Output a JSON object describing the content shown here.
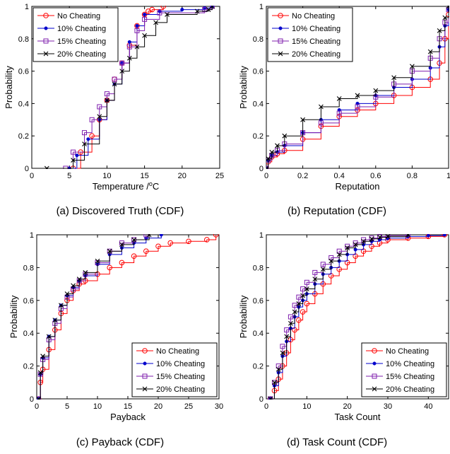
{
  "series_names": [
    "No Cheating",
    "10% Cheating",
    "15% Cheating",
    "20% Cheating"
  ],
  "colors": [
    "#ff0000",
    "#0000cc",
    "#7f1fae",
    "#000000"
  ],
  "markers": [
    "circle",
    "dot",
    "square",
    "x"
  ],
  "chart_data": [
    {
      "type": "line",
      "caption": "(a) Discovered Truth (CDF)",
      "xlabel": "Temperature /",
      "xlabel_unit": "C",
      "xlabel_unit_sup": "o",
      "ylabel": "Probability",
      "xlim": [
        0,
        25
      ],
      "ylim": [
        0,
        1
      ],
      "xticks": [
        0,
        5,
        10,
        15,
        20,
        25
      ],
      "yticks": [
        0,
        0.2,
        0.4,
        0.6,
        0.8,
        1
      ],
      "ytick_labels": [
        "0",
        "0.2",
        "0.4",
        "0.6",
        "0.8",
        "1"
      ],
      "legend": "top-left",
      "series": [
        {
          "name": "No Cheating",
          "x": [
            5.5,
            6.5,
            8,
            9,
            10,
            11,
            12,
            13,
            14,
            15,
            15.5,
            16,
            17.5
          ],
          "y": [
            0,
            0.1,
            0.2,
            0.3,
            0.42,
            0.55,
            0.65,
            0.76,
            0.88,
            0.95,
            0.97,
            0.98,
            1
          ]
        },
        {
          "name": "10% Cheating",
          "x": [
            5,
            6,
            7.5,
            9,
            10,
            11,
            12,
            13,
            14,
            15,
            17,
            20,
            23,
            24
          ],
          "y": [
            0,
            0.08,
            0.18,
            0.3,
            0.42,
            0.52,
            0.65,
            0.78,
            0.88,
            0.95,
            0.97,
            0.98,
            0.99,
            1
          ]
        },
        {
          "name": "15% Cheating",
          "x": [
            4.5,
            5.5,
            7,
            8,
            9,
            10,
            11,
            12,
            13,
            14,
            15,
            17,
            23,
            24
          ],
          "y": [
            0,
            0.1,
            0.22,
            0.3,
            0.38,
            0.46,
            0.55,
            0.65,
            0.75,
            0.85,
            0.92,
            0.96,
            0.98,
            1
          ]
        },
        {
          "name": "20% Cheating",
          "x": [
            2,
            5.5,
            7,
            9,
            10,
            11,
            12,
            13,
            14,
            15,
            16.5,
            18,
            22,
            23.5,
            24
          ],
          "y": [
            0,
            0.05,
            0.15,
            0.32,
            0.42,
            0.52,
            0.6,
            0.68,
            0.75,
            0.82,
            0.9,
            0.95,
            0.97,
            0.98,
            1
          ]
        }
      ]
    },
    {
      "type": "line",
      "caption": "(b) Reputation (CDF)",
      "xlabel": "Reputation",
      "ylabel": "Probability",
      "xlim": [
        0,
        1
      ],
      "ylim": [
        0,
        1
      ],
      "xticks": [
        0,
        0.2,
        0.4,
        0.6,
        0.8,
        1
      ],
      "xtick_labels": [
        "0",
        "0.2",
        "0.4",
        "0.6",
        "0.8",
        "1"
      ],
      "yticks": [
        0,
        0.2,
        0.4,
        0.6,
        0.8,
        1
      ],
      "ytick_labels": [
        "0",
        "0.2",
        "0.4",
        "0.6",
        "0.8",
        "1"
      ],
      "legend": "top-left",
      "series": [
        {
          "name": "No Cheating",
          "x": [
            0,
            0.01,
            0.03,
            0.06,
            0.1,
            0.2,
            0.3,
            0.4,
            0.5,
            0.6,
            0.7,
            0.8,
            0.9,
            0.95,
            0.98,
            1
          ],
          "y": [
            0,
            0.04,
            0.07,
            0.09,
            0.11,
            0.18,
            0.26,
            0.32,
            0.36,
            0.4,
            0.45,
            0.5,
            0.55,
            0.65,
            0.8,
            0.95
          ]
        },
        {
          "name": "10% Cheating",
          "x": [
            0,
            0.01,
            0.03,
            0.06,
            0.1,
            0.2,
            0.3,
            0.4,
            0.5,
            0.6,
            0.7,
            0.8,
            0.9,
            0.95,
            0.98,
            1
          ],
          "y": [
            0,
            0.05,
            0.08,
            0.1,
            0.14,
            0.22,
            0.3,
            0.36,
            0.4,
            0.45,
            0.5,
            0.55,
            0.62,
            0.75,
            0.88,
            0.98
          ]
        },
        {
          "name": "15% Cheating",
          "x": [
            0,
            0.01,
            0.03,
            0.06,
            0.1,
            0.2,
            0.3,
            0.4,
            0.5,
            0.6,
            0.7,
            0.8,
            0.9,
            0.95,
            0.98,
            1
          ],
          "y": [
            0,
            0.05,
            0.08,
            0.11,
            0.15,
            0.22,
            0.28,
            0.34,
            0.38,
            0.44,
            0.52,
            0.6,
            0.68,
            0.8,
            0.9,
            0.98
          ]
        },
        {
          "name": "20% Cheating",
          "x": [
            0,
            0.01,
            0.03,
            0.06,
            0.1,
            0.2,
            0.3,
            0.4,
            0.5,
            0.6,
            0.7,
            0.8,
            0.9,
            0.95,
            0.98,
            1
          ],
          "y": [
            0,
            0.06,
            0.1,
            0.14,
            0.2,
            0.3,
            0.38,
            0.43,
            0.45,
            0.48,
            0.56,
            0.63,
            0.72,
            0.85,
            0.93,
            1
          ]
        }
      ]
    },
    {
      "type": "line",
      "caption": "(c) Payback (CDF)",
      "xlabel": "Payback",
      "ylabel": "Probability",
      "xlim": [
        0,
        30
      ],
      "ylim": [
        0,
        1
      ],
      "xticks": [
        0,
        5,
        10,
        15,
        20,
        25,
        30
      ],
      "yticks": [
        0,
        0.2,
        0.4,
        0.6,
        0.8,
        1
      ],
      "ytick_labels": [
        "0",
        "0.2",
        "0.4",
        "0.6",
        "0.8",
        "1"
      ],
      "legend": "bottom-right",
      "series": [
        {
          "name": "No Cheating",
          "x": [
            0.3,
            0.6,
            1,
            2,
            3,
            4,
            5,
            6,
            7,
            8,
            10,
            12,
            14,
            16,
            18,
            20,
            22,
            25,
            28,
            29.5
          ],
          "y": [
            0,
            0.1,
            0.18,
            0.3,
            0.42,
            0.52,
            0.6,
            0.66,
            0.7,
            0.72,
            0.76,
            0.8,
            0.83,
            0.87,
            0.9,
            0.93,
            0.95,
            0.96,
            0.97,
            1
          ]
        },
        {
          "name": "10% Cheating",
          "x": [
            0.3,
            0.6,
            1,
            2,
            3,
            4,
            5,
            6,
            7,
            8,
            10,
            12,
            14,
            16,
            18,
            20.5
          ],
          "y": [
            0,
            0.15,
            0.25,
            0.38,
            0.48,
            0.57,
            0.63,
            0.68,
            0.72,
            0.75,
            0.82,
            0.88,
            0.92,
            0.95,
            0.98,
            1
          ]
        },
        {
          "name": "15% Cheating",
          "x": [
            0.3,
            0.6,
            1,
            2,
            3,
            4,
            5,
            6,
            7,
            8,
            10,
            12,
            14,
            16,
            18
          ],
          "y": [
            0,
            0.15,
            0.24,
            0.36,
            0.46,
            0.55,
            0.62,
            0.67,
            0.72,
            0.76,
            0.83,
            0.9,
            0.95,
            0.97,
            1
          ]
        },
        {
          "name": "20% Cheating",
          "x": [
            0.3,
            0.6,
            1,
            2,
            3,
            4,
            5,
            6,
            7,
            8,
            10,
            12,
            14,
            16,
            18.5
          ],
          "y": [
            0,
            0.16,
            0.26,
            0.38,
            0.48,
            0.57,
            0.64,
            0.69,
            0.73,
            0.77,
            0.84,
            0.9,
            0.94,
            0.97,
            1
          ]
        }
      ]
    },
    {
      "type": "line",
      "caption": "(d) Task Count (CDF)",
      "xlabel": "Task Count",
      "ylabel": "Probability",
      "xlim": [
        0,
        45
      ],
      "ylim": [
        0,
        1
      ],
      "xticks": [
        0,
        10,
        20,
        30,
        40
      ],
      "yticks": [
        0,
        0.2,
        0.4,
        0.6,
        0.8,
        1
      ],
      "ytick_labels": [
        "0",
        "0.2",
        "0.4",
        "0.6",
        "0.8",
        "1"
      ],
      "legend": "bottom-right",
      "series": [
        {
          "name": "No Cheating",
          "x": [
            1,
            2,
            3,
            4,
            5,
            6,
            7,
            8,
            9,
            10,
            12,
            14,
            16,
            18,
            20,
            22,
            24,
            26,
            28,
            30,
            35,
            40,
            44
          ],
          "y": [
            0,
            0.05,
            0.12,
            0.2,
            0.28,
            0.36,
            0.42,
            0.48,
            0.53,
            0.58,
            0.64,
            0.7,
            0.75,
            0.79,
            0.83,
            0.87,
            0.9,
            0.93,
            0.95,
            0.97,
            0.98,
            0.99,
            1
          ]
        },
        {
          "name": "10% Cheating",
          "x": [
            1,
            2,
            3,
            4,
            5,
            6,
            7,
            8,
            9,
            10,
            12,
            14,
            16,
            18,
            20,
            22,
            24,
            26,
            28,
            30,
            35,
            40,
            44
          ],
          "y": [
            0,
            0.08,
            0.16,
            0.26,
            0.35,
            0.43,
            0.5,
            0.56,
            0.6,
            0.64,
            0.7,
            0.76,
            0.8,
            0.84,
            0.88,
            0.91,
            0.94,
            0.96,
            0.97,
            0.98,
            0.99,
            0.995,
            1
          ]
        },
        {
          "name": "15% Cheating",
          "x": [
            1,
            2,
            3,
            4,
            5,
            6,
            7,
            8,
            9,
            10,
            12,
            14,
            16,
            18,
            20,
            22,
            24,
            26,
            28,
            30,
            35
          ],
          "y": [
            0,
            0.1,
            0.2,
            0.32,
            0.42,
            0.5,
            0.57,
            0.62,
            0.67,
            0.71,
            0.77,
            0.82,
            0.86,
            0.9,
            0.93,
            0.95,
            0.97,
            0.98,
            0.99,
            0.995,
            1
          ]
        },
        {
          "name": "20% Cheating",
          "x": [
            1,
            2,
            3,
            4,
            5,
            6,
            7,
            8,
            9,
            10,
            12,
            14,
            16,
            18,
            20,
            22,
            24,
            26,
            28,
            30,
            35
          ],
          "y": [
            0,
            0.1,
            0.18,
            0.28,
            0.38,
            0.46,
            0.53,
            0.58,
            0.63,
            0.67,
            0.73,
            0.79,
            0.84,
            0.88,
            0.92,
            0.94,
            0.96,
            0.975,
            0.985,
            0.99,
            1
          ]
        }
      ]
    }
  ]
}
